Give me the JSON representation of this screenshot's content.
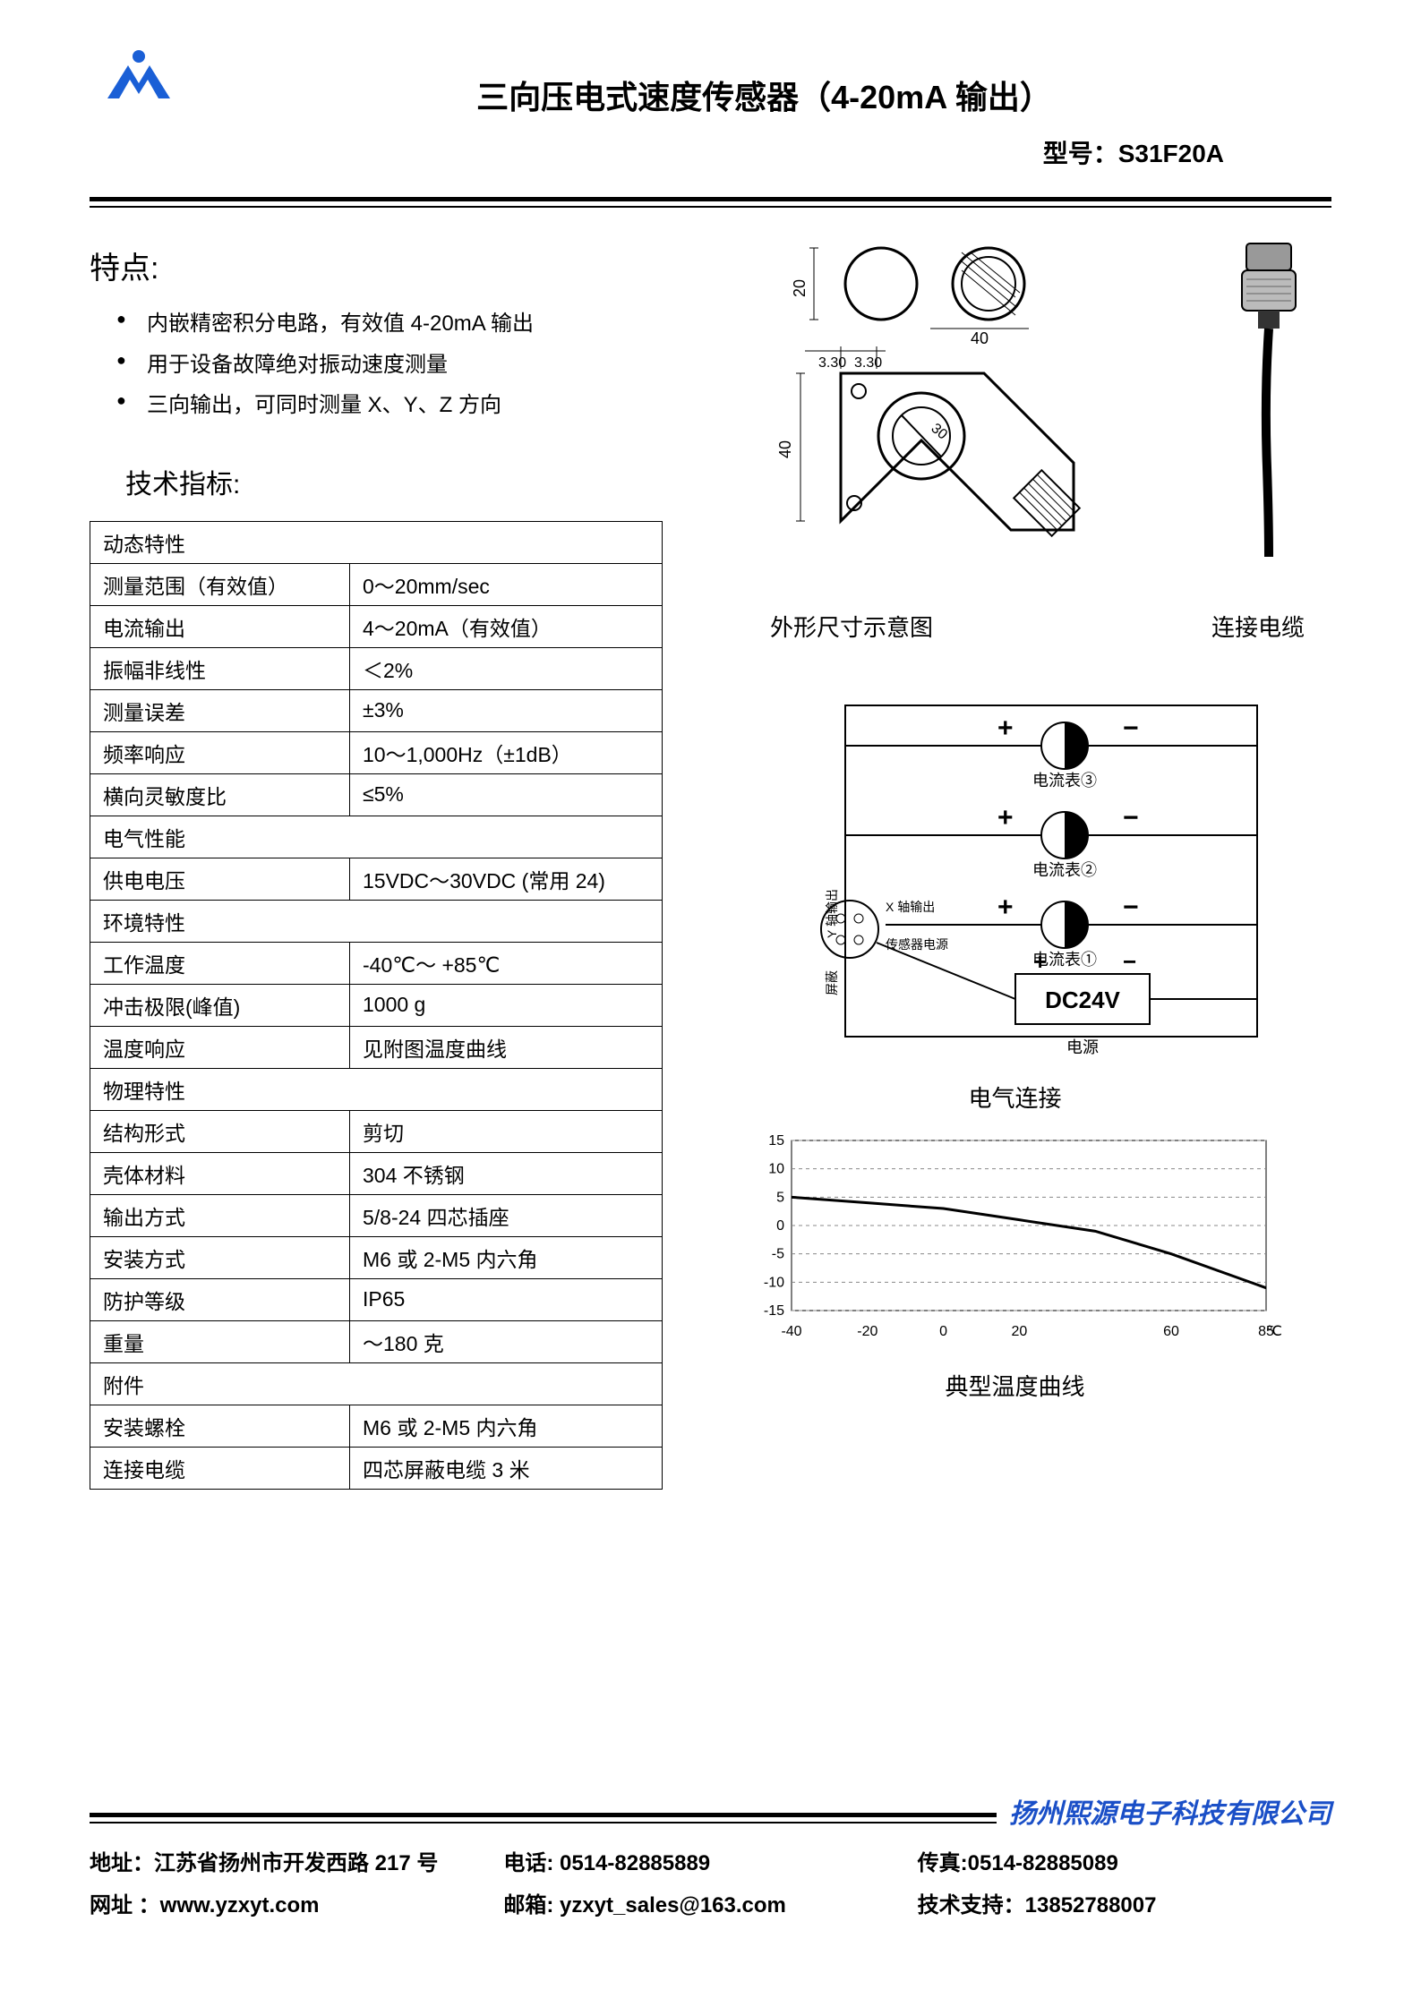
{
  "header": {
    "title": "三向压电式速度传感器（4-20mA 输出）",
    "model_label": "型号：S31F20A"
  },
  "logo": {
    "color": "#1a5fd6"
  },
  "features": {
    "heading": "特点:",
    "items": [
      "内嵌精密积分电路，有效值 4-20mA 输出",
      "用于设备故障绝对振动速度测量",
      "三向输出，可同时测量 X、Y、Z 方向"
    ]
  },
  "specs": {
    "heading": "技术指标:",
    "rows": [
      {
        "label": "动态特性",
        "value": "",
        "section": true
      },
      {
        "label": "测量范围（有效值）",
        "value": "0～20mm/sec"
      },
      {
        "label": "电流输出",
        "value": "4～20mA（有效值）"
      },
      {
        "label": "振幅非线性",
        "value": "＜2%"
      },
      {
        "label": "测量误差",
        "value": "±3%"
      },
      {
        "label": "频率响应",
        "value": "10～1,000Hz（±1dB）"
      },
      {
        "label": "横向灵敏度比",
        "value": "≤5%"
      },
      {
        "label": "电气性能",
        "value": "",
        "section": true
      },
      {
        "label": "供电电压",
        "value": "15VDC～30VDC (常用 24)"
      },
      {
        "label": "环境特性",
        "value": "",
        "section": true
      },
      {
        "label": "工作温度",
        "value": "-40℃～ +85℃"
      },
      {
        "label": "冲击极限(峰值)",
        "value": "1000 g"
      },
      {
        "label": "温度响应",
        "value": "见附图温度曲线"
      },
      {
        "label": "物理特性",
        "value": "",
        "section": true
      },
      {
        "label": "结构形式",
        "value": "剪切"
      },
      {
        "label": "壳体材料",
        "value": "304 不锈钢"
      },
      {
        "label": "输出方式",
        "value": "5/8-24  四芯插座"
      },
      {
        "label": "安装方式",
        "value": "M6 或 2-M5 内六角"
      },
      {
        "label": "防护等级",
        "value": "IP65"
      },
      {
        "label": "重量",
        "value": "～180 克"
      },
      {
        "label": "附件",
        "value": "",
        "section": true
      },
      {
        "label": "安装螺栓",
        "value": "M6 或 2-M5 内六角"
      },
      {
        "label": "连接电缆",
        "value": "四芯屏蔽电缆 3 米"
      }
    ]
  },
  "diagrams": {
    "outline": {
      "caption": "外形尺寸示意图",
      "dims": {
        "top_h": "20",
        "top_w": "40",
        "gap1": "3.30",
        "gap2": "3.30",
        "body_h": "40",
        "port_d": "30"
      }
    },
    "cable": {
      "caption": "连接电缆"
    },
    "wiring": {
      "caption": "电气连接",
      "meters": [
        "电流表③",
        "电流表②",
        "电流表①"
      ],
      "labels": {
        "y_out": "Y 轴输出",
        "x_out": "X 轴输出",
        "sensor_pwr": "传感器电源",
        "shield": "屏蔽"
      },
      "power_box": "DC24V",
      "power_caption": "电源",
      "plus": "+",
      "minus": "−"
    },
    "temp_chart": {
      "caption": "典型温度曲线",
      "type": "line",
      "y_ticks": [
        "15",
        "10",
        "5",
        "0",
        "-5",
        "-10",
        "-15"
      ],
      "x_ticks": [
        "-40",
        "-20",
        "0",
        "20",
        "60",
        "85"
      ],
      "x_unit": "℃",
      "ylim": [
        -15,
        15
      ],
      "xlim": [
        -40,
        85
      ],
      "line_color": "#000000",
      "grid_color": "#888888",
      "background": "#ffffff",
      "points": [
        {
          "x": -40,
          "y": 5
        },
        {
          "x": -20,
          "y": 4
        },
        {
          "x": 0,
          "y": 3
        },
        {
          "x": 20,
          "y": 1
        },
        {
          "x": 40,
          "y": -1
        },
        {
          "x": 60,
          "y": -5
        },
        {
          "x": 85,
          "y": -11
        }
      ]
    }
  },
  "footer": {
    "company": "扬州熙源电子科技有限公司",
    "row1": {
      "addr": "地址：江苏省扬州市开发西路 217 号",
      "tel": "电话: 0514-82885889",
      "fax": "传真:0514-82885089"
    },
    "row2": {
      "web": "网址 ：www.yzxyt.com",
      "mail": "邮箱: yzxyt_sales@163.com",
      "tech": "技术支持：13852788007"
    }
  }
}
